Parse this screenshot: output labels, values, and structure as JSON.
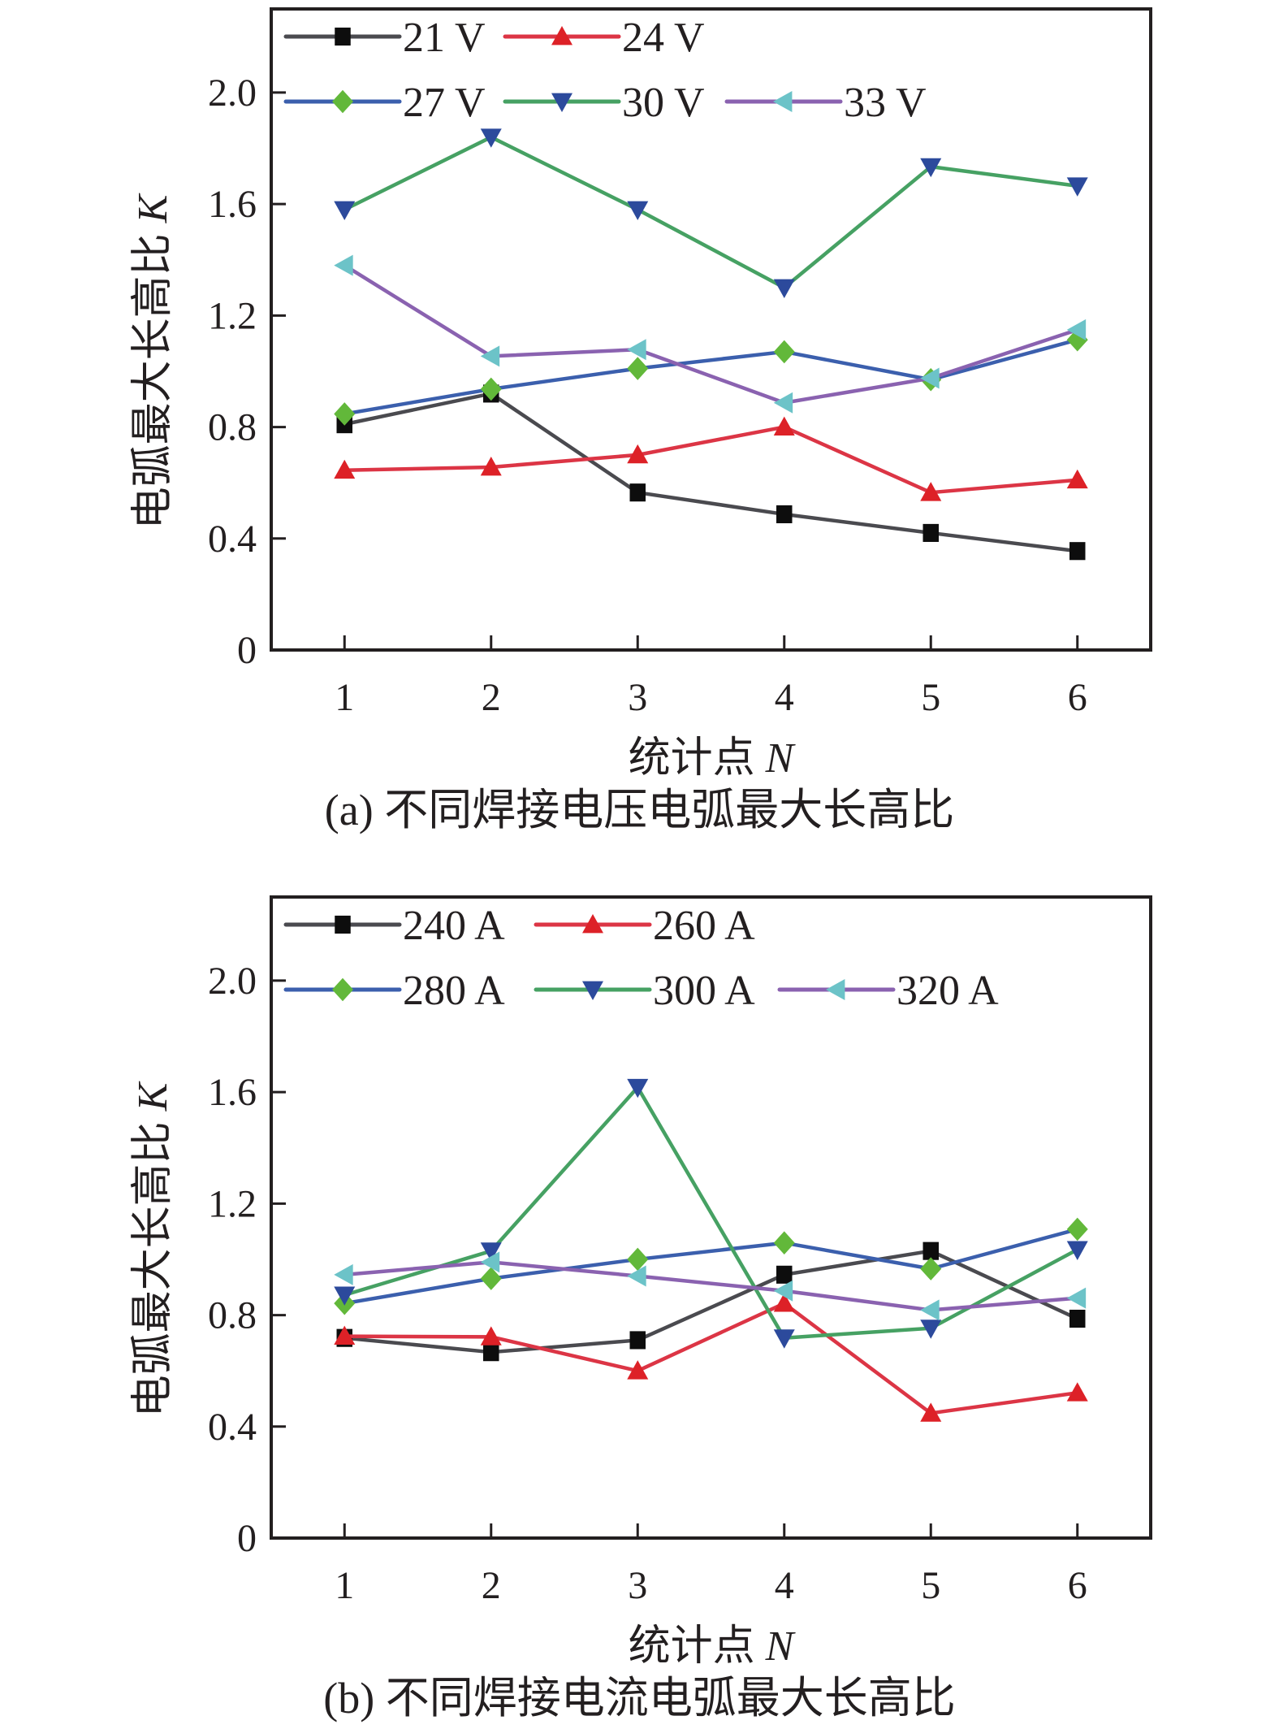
{
  "chart_data": [
    {
      "type": "line",
      "caption": "(a) 不同焊接电压电弧最大长高比",
      "xlabel": "统计点",
      "xlabel_var": "N",
      "ylabel": "电弧最大长高比",
      "ylabel_var": "K",
      "xlim": [
        0.5,
        6.5
      ],
      "ylim": [
        0,
        2.3
      ],
      "x": [
        1,
        2,
        3,
        4,
        5,
        6
      ],
      "xticks": [
        "1",
        "2",
        "3",
        "4",
        "5",
        "6"
      ],
      "yticks": [
        0,
        0.4,
        0.8,
        1.2,
        1.6,
        2.0
      ],
      "yticklabels": [
        "0",
        "0.4",
        "0.8",
        "1.2",
        "1.6",
        "2.0"
      ],
      "grid": false,
      "legend_position": "top-left",
      "series": [
        {
          "name": "21 V",
          "values": [
            0.81,
            0.92,
            0.565,
            0.487,
            0.42,
            0.355
          ],
          "line_color": "#4a4a4f",
          "marker": "square",
          "marker_color": "#0d0d0d"
        },
        {
          "name": "24 V",
          "values": [
            0.645,
            0.656,
            0.7,
            0.8,
            0.565,
            0.61
          ],
          "line_color": "#dc3545",
          "marker": "triangle-up",
          "marker_color": "#dd2127"
        },
        {
          "name": "27 V",
          "values": [
            0.847,
            0.936,
            1.01,
            1.07,
            0.97,
            1.113
          ],
          "line_color": "#3b5fad",
          "marker": "diamond",
          "marker_color": "#62b83a"
        },
        {
          "name": "30 V",
          "values": [
            1.58,
            1.84,
            1.58,
            1.3,
            1.734,
            1.665
          ],
          "line_color": "#46a163",
          "marker": "triangle-down",
          "marker_color": "#2c4a9c"
        },
        {
          "name": "33 V",
          "values": [
            1.38,
            1.054,
            1.078,
            0.887,
            0.975,
            1.149
          ],
          "line_color": "#8a62b0",
          "marker": "triangle-left",
          "marker_color": "#6cc3c8"
        }
      ]
    },
    {
      "type": "line",
      "caption": "(b) 不同焊接电流电弧最大长高比",
      "xlabel": "统计点",
      "xlabel_var": "N",
      "ylabel": "电弧最大长高比",
      "ylabel_var": "K",
      "xlim": [
        0.5,
        6.5
      ],
      "ylim": [
        0,
        2.3
      ],
      "x": [
        1,
        2,
        3,
        4,
        5,
        6
      ],
      "xticks": [
        "1",
        "2",
        "3",
        "4",
        "5",
        "6"
      ],
      "yticks": [
        0,
        0.4,
        0.8,
        1.2,
        1.6,
        2.0
      ],
      "yticklabels": [
        "0",
        "0.4",
        "0.8",
        "1.2",
        "1.6",
        "2.0"
      ],
      "grid": false,
      "legend_position": "top-left",
      "series": [
        {
          "name": "240 A",
          "values": [
            0.718,
            0.667,
            0.71,
            0.945,
            1.03,
            0.787
          ],
          "line_color": "#4a4a4f",
          "marker": "square",
          "marker_color": "#0d0d0d"
        },
        {
          "name": "260 A",
          "values": [
            0.724,
            0.722,
            0.6,
            0.842,
            0.448,
            0.521
          ],
          "line_color": "#dc3545",
          "marker": "triangle-up",
          "marker_color": "#dd2127"
        },
        {
          "name": "280 A",
          "values": [
            0.842,
            0.931,
            1.0,
            1.059,
            0.966,
            1.108
          ],
          "line_color": "#3b5fad",
          "marker": "diamond",
          "marker_color": "#62b83a"
        },
        {
          "name": "300 A",
          "values": [
            0.872,
            1.03,
            1.617,
            0.718,
            0.753,
            1.035
          ],
          "line_color": "#46a163",
          "marker": "triangle-down",
          "marker_color": "#2c4a9c"
        },
        {
          "name": "320 A",
          "values": [
            0.945,
            0.99,
            0.94,
            0.887,
            0.818,
            0.861
          ],
          "line_color": "#8a62b0",
          "marker": "triangle-left",
          "marker_color": "#6cc3c8"
        }
      ]
    }
  ]
}
